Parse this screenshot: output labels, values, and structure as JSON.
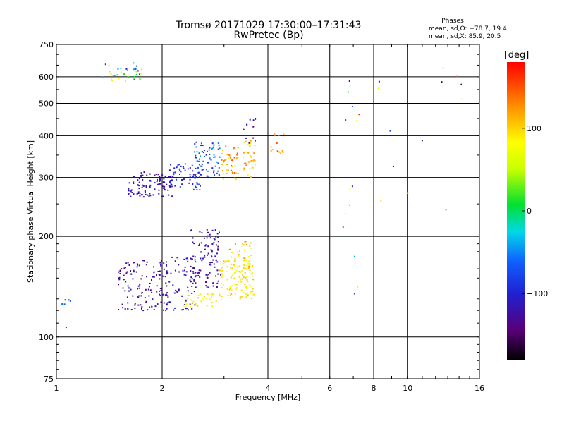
{
  "chart_data": {
    "type": "scatter",
    "title": "Tromsø 20171029 17:30:00–17:31:43",
    "subtitle": "RwPretec (Bp)",
    "xlabel": "Frequency [MHz]",
    "ylabel": "Stationary phase Virtual Height [km]",
    "x_scale": "log",
    "y_scale": "log",
    "xlim": [
      1,
      16
    ],
    "ylim": [
      75,
      750
    ],
    "x_ticks": [
      1,
      2,
      4,
      6,
      8,
      10,
      16
    ],
    "x_tick_labels": [
      "1",
      "2",
      "4",
      "6",
      "8",
      "10",
      "16"
    ],
    "y_ticks": [
      75,
      100,
      200,
      300,
      400,
      500,
      600,
      750
    ],
    "y_tick_labels": [
      "75",
      "100",
      "200",
      "300",
      "400",
      "500",
      "600",
      "750"
    ],
    "grid": true,
    "stats": {
      "title": "Phases",
      "line_o": "mean, sd,O: −78.7, 19.4",
      "line_x": "mean, sd,X:  85.9, 20.5"
    },
    "colorbar": {
      "label": "[deg]",
      "range": [
        -180,
        180
      ],
      "ticks": [
        100,
        0,
        -100
      ],
      "tick_labels": [
        "100",
        "0",
        "−100"
      ]
    },
    "clusters": [
      {
        "f": [
          1.35,
          1.75
        ],
        "h": [
          575,
          660
        ],
        "phase": [
          -110,
          130
        ],
        "n": 35
      },
      {
        "f": [
          1.6,
          2.15
        ],
        "h": [
          262,
          312
        ],
        "phase": [
          -140,
          -100
        ],
        "n": 110
      },
      {
        "f": [
          2.1,
          2.6
        ],
        "h": [
          275,
          330
        ],
        "phase": [
          -120,
          -60
        ],
        "n": 60
      },
      {
        "f": [
          2.45,
          2.95
        ],
        "h": [
          300,
          390
        ],
        "phase": [
          -100,
          -40
        ],
        "n": 70
      },
      {
        "f": [
          2.95,
          3.3
        ],
        "h": [
          295,
          372
        ],
        "phase": [
          90,
          150
        ],
        "n": 45
      },
      {
        "f": [
          3.4,
          3.7
        ],
        "h": [
          300,
          390
        ],
        "phase": [
          70,
          140
        ],
        "n": 35
      },
      {
        "f": [
          3.4,
          3.7
        ],
        "h": [
          360,
          460
        ],
        "phase": [
          -150,
          -80
        ],
        "n": 12
      },
      {
        "f": [
          4.05,
          4.5
        ],
        "h": [
          330,
          410
        ],
        "phase": [
          110,
          150
        ],
        "n": 14
      },
      {
        "f": [
          1.5,
          2.1
        ],
        "h": [
          120,
          170
        ],
        "phase": [
          -150,
          -105
        ],
        "n": 130
      },
      {
        "f": [
          2.0,
          2.5
        ],
        "h": [
          120,
          175
        ],
        "phase": [
          -130,
          -95
        ],
        "n": 70
      },
      {
        "f": [
          2.4,
          2.95
        ],
        "h": [
          140,
          210
        ],
        "phase": [
          -140,
          -100
        ],
        "n": 110
      },
      {
        "f": [
          2.3,
          2.95
        ],
        "h": [
          123,
          135
        ],
        "phase": [
          70,
          100
        ],
        "n": 40
      },
      {
        "f": [
          2.9,
          3.65
        ],
        "h": [
          130,
          170
        ],
        "phase": [
          70,
          110
        ],
        "n": 120
      },
      {
        "f": [
          3.1,
          3.6
        ],
        "h": [
          155,
          195
        ],
        "phase": [
          80,
          130
        ],
        "n": 30
      },
      {
        "f": [
          6.5,
          7.5
        ],
        "h": [
          130,
          650
        ],
        "phase": [
          -170,
          170
        ],
        "n": 14
      },
      {
        "f": [
          8.1,
          9.2
        ],
        "h": [
          230,
          600
        ],
        "phase": [
          -170,
          120
        ],
        "n": 5
      },
      {
        "f": [
          10.0,
          14.5
        ],
        "h": [
          205,
          670
        ],
        "phase": [
          -170,
          160
        ],
        "n": 8
      },
      {
        "f": [
          1.03,
          1.1
        ],
        "h": [
          100,
          130
        ],
        "phase": [
          -90,
          -40
        ],
        "n": 6
      }
    ]
  }
}
